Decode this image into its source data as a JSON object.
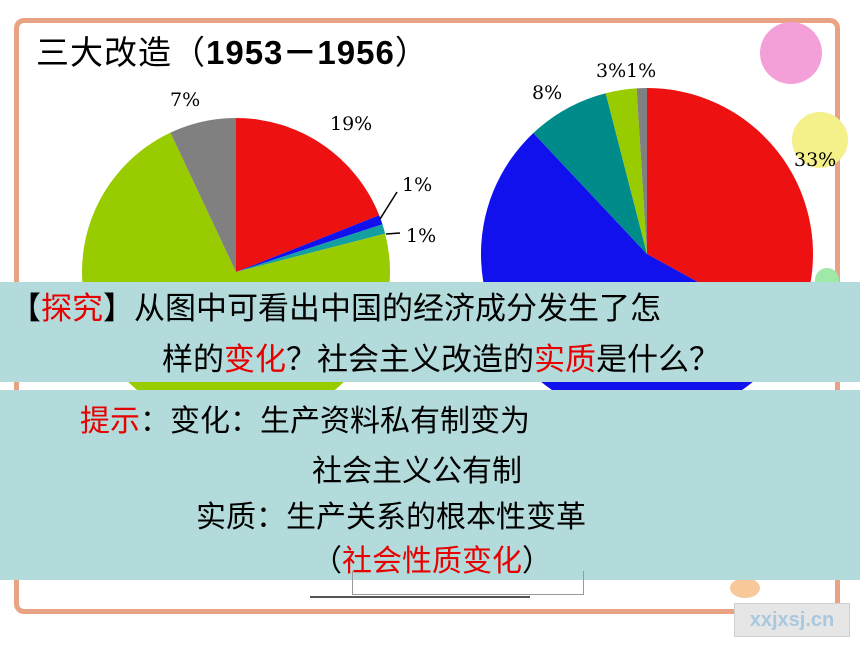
{
  "title": {
    "text": "三大改造（",
    "years": "1953－1956",
    "close": "）"
  },
  "chart_data": [
    {
      "type": "pie",
      "slices": [
        {
          "label": "19%",
          "value": 19,
          "color": "#ee1111"
        },
        {
          "label": "1%",
          "value": 1,
          "color": "#1111ee"
        },
        {
          "label": "1%",
          "value": 1,
          "color": "#14a0a0"
        },
        {
          "label": "",
          "value": 72,
          "color": "#99cc00"
        },
        {
          "label": "7%",
          "value": 7,
          "color": "#808080"
        }
      ]
    },
    {
      "type": "pie",
      "slices": [
        {
          "label": "33%",
          "value": 33,
          "color": "#ee1111"
        },
        {
          "label": "",
          "value": 55,
          "color": "#1111ee"
        },
        {
          "label": "8%",
          "value": 8,
          "color": "#008b8b"
        },
        {
          "label": "3%",
          "value": 3,
          "color": "#99cc00"
        },
        {
          "label": "1%",
          "value": 1,
          "color": "#808080"
        }
      ]
    }
  ],
  "question": {
    "bracket_open": "【",
    "tag": "探究",
    "bracket_close": "】",
    "line1": "从图中可看出中国的经济成分发生了怎",
    "line2_a": "样的",
    "line2_b": "变化",
    "line2_c": "？社会主义改造的",
    "line2_d": "实质",
    "line2_e": "是什么？"
  },
  "hint": {
    "label": "提示",
    "colon": "：",
    "line1": "变化：生产资料私有制变为",
    "line2": "社会主义公有制",
    "line3": "实质：生产关系的根本性变革",
    "line4_open": "（",
    "line4_red": "社会性质变化",
    "line4_close": "）"
  },
  "watermark": "xxjxsj.cn"
}
